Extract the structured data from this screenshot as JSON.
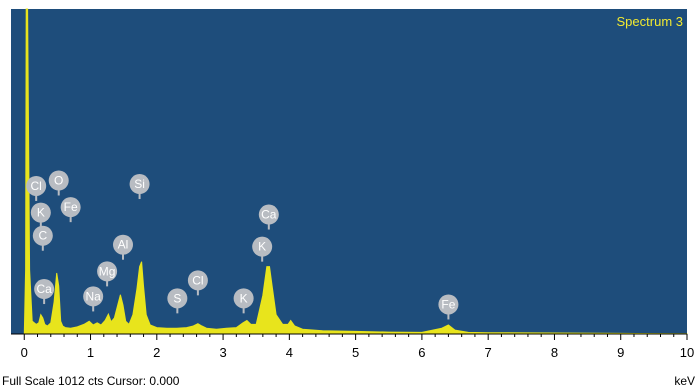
{
  "chart_data": {
    "type": "area",
    "spectrum_label": "Spectrum 3",
    "xlim": [
      -0.2,
      10
    ],
    "ylim": [
      0,
      1012
    ],
    "x_ticks": [
      "0",
      "1",
      "2",
      "3",
      "4",
      "5",
      "6",
      "7",
      "8",
      "9",
      "10"
    ],
    "x_unit": "keV",
    "colors": {
      "background": "#1e4d7b",
      "fill": "#e8e41c",
      "marker": "#b8bcc2",
      "axis": "#000000"
    },
    "series": [
      {
        "x": [
          0.0,
          0.02,
          0.03,
          0.05,
          0.08,
          0.12,
          0.18,
          0.22,
          0.25,
          0.28,
          0.31,
          0.35,
          0.4,
          0.45,
          0.49,
          0.52,
          0.55,
          0.58,
          0.62,
          0.7,
          0.8,
          0.9,
          0.98,
          1.04,
          1.1,
          1.16,
          1.22,
          1.27,
          1.31,
          1.36,
          1.41,
          1.45,
          1.49,
          1.53,
          1.58,
          1.64,
          1.7,
          1.74,
          1.77,
          1.8,
          1.84,
          1.9,
          2.0,
          2.15,
          2.3,
          2.45,
          2.55,
          2.62,
          2.68,
          2.75,
          2.9,
          3.05,
          3.2,
          3.3,
          3.36,
          3.42,
          3.5,
          3.6,
          3.66,
          3.7,
          3.74,
          3.8,
          3.9,
          3.98,
          4.02,
          4.08,
          4.2,
          4.5,
          5.0,
          5.5,
          6.0,
          6.3,
          6.4,
          6.5,
          6.7,
          7.0,
          8.0,
          9.0,
          10.0
        ],
        "y": [
          0,
          200,
          1012,
          1012,
          200,
          40,
          30,
          35,
          60,
          50,
          30,
          25,
          35,
          100,
          190,
          150,
          40,
          25,
          20,
          18,
          22,
          30,
          40,
          28,
          35,
          28,
          42,
          62,
          38,
          50,
          90,
          122,
          90,
          40,
          30,
          60,
          140,
          210,
          225,
          150,
          60,
          28,
          20,
          18,
          18,
          20,
          25,
          32,
          25,
          18,
          15,
          18,
          20,
          35,
          42,
          30,
          30,
          120,
          210,
          210,
          150,
          60,
          30,
          30,
          42,
          25,
          15,
          10,
          8,
          6,
          5,
          18,
          28,
          12,
          5,
          4,
          3,
          2,
          1
        ]
      }
    ],
    "markers": [
      {
        "label": "Cl",
        "x": 0.18,
        "y": 461
      },
      {
        "label": "O",
        "x": 0.52,
        "y": 478
      },
      {
        "label": "K",
        "x": 0.25,
        "y": 378
      },
      {
        "label": "Fe",
        "x": 0.7,
        "y": 395
      },
      {
        "label": "C",
        "x": 0.28,
        "y": 306
      },
      {
        "label": "Ca",
        "x": 0.3,
        "y": 140
      },
      {
        "label": "Na",
        "x": 1.04,
        "y": 117
      },
      {
        "label": "Mg",
        "x": 1.25,
        "y": 195
      },
      {
        "label": "Al",
        "x": 1.49,
        "y": 278
      },
      {
        "label": "Si",
        "x": 1.74,
        "y": 467
      },
      {
        "label": "S",
        "x": 2.31,
        "y": 111
      },
      {
        "label": "Cl",
        "x": 2.62,
        "y": 167
      },
      {
        "label": "K",
        "x": 3.31,
        "y": 111
      },
      {
        "label": "Ca",
        "x": 3.69,
        "y": 372
      },
      {
        "label": "K",
        "x": 3.59,
        "y": 272
      },
      {
        "label": "Fe",
        "x": 6.4,
        "y": 92
      }
    ]
  },
  "status": {
    "left": "Full Scale 1012 cts Cursor: 0.000",
    "right": "keV"
  }
}
